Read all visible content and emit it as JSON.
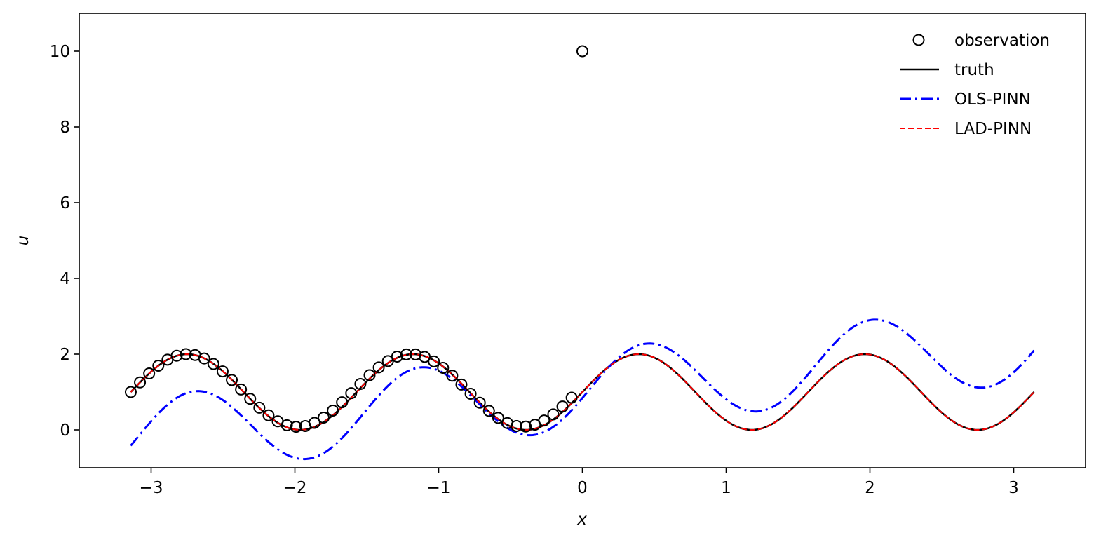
{
  "chart_data": {
    "type": "line",
    "title": "",
    "xlabel": "x",
    "ylabel": "u",
    "xlim": [
      -3.5,
      3.5
    ],
    "ylim": [
      -1.0,
      11.0
    ],
    "xticks": [
      -3,
      -2,
      -1,
      0,
      1,
      2,
      3
    ],
    "xtick_labels": [
      "−3",
      "−2",
      "−1",
      "0",
      "1",
      "2",
      "3"
    ],
    "yticks": [
      0,
      2,
      4,
      6,
      8,
      10
    ],
    "ytick_labels": [
      "0",
      "2",
      "4",
      "6",
      "8",
      "10"
    ],
    "grid": false,
    "legend_position": "top-right",
    "series": [
      {
        "name": "observation",
        "kind": "scatter",
        "color": "#000000",
        "x": [
          -3.1416,
          -3.0777,
          -3.0138,
          -2.9499,
          -2.886,
          -2.8222,
          -2.7583,
          -2.6944,
          -2.6305,
          -2.5666,
          -2.5027,
          -2.4388,
          -2.3749,
          -2.311,
          -2.2471,
          -2.1833,
          -2.1194,
          -2.0555,
          -1.9916,
          -1.9277,
          -1.8638,
          -1.7999,
          -1.736,
          -1.6721,
          -1.6082,
          -1.5444,
          -1.4805,
          -1.4166,
          -1.3527,
          -1.2888,
          -1.2249,
          -1.161,
          -1.0971,
          -1.0332,
          -0.9693,
          -0.9055,
          -0.8416,
          -0.7777,
          -0.7138,
          -0.6499,
          -0.586,
          -0.5221,
          -0.4582,
          -0.3943,
          -0.3304,
          -0.2666,
          -0.2027,
          -0.1388,
          -0.0749,
          0.0
        ],
        "y": [
          1.0,
          1.254,
          1.491,
          1.695,
          1.855,
          1.959,
          2.0,
          1.976,
          1.887,
          1.74,
          1.545,
          1.316,
          1.068,
          0.819,
          0.586,
          0.384,
          0.226,
          0.123,
          0.081,
          0.102,
          0.185,
          0.324,
          0.51,
          0.73,
          0.97,
          1.213,
          1.445,
          1.651,
          1.817,
          1.935,
          1.994,
          1.993,
          1.929,
          1.808,
          1.638,
          1.43,
          1.196,
          0.954,
          0.717,
          0.502,
          0.317,
          0.18,
          0.103,
          0.088,
          0.137,
          0.247,
          0.41,
          0.617,
          0.851,
          10.0
        ]
      },
      {
        "name": "truth",
        "kind": "line",
        "color": "#000000",
        "style": "solid",
        "func": {
          "a": 1.0,
          "b": 1.0,
          "slope": 0.0,
          "k": 4.0,
          "x0": 0.0
        }
      },
      {
        "name": "OLS-PINN",
        "kind": "line",
        "color": "#0000ff",
        "style": "dashdot",
        "func": {
          "a": 1.05,
          "b": 1.05,
          "slope": 0.4,
          "k": 4.0,
          "x0": 0.05
        }
      },
      {
        "name": "LAD-PINN",
        "kind": "line",
        "color": "#ff0000",
        "style": "dashed",
        "func": {
          "a": 1.0,
          "b": 1.0,
          "slope": 0.0,
          "k": 4.0,
          "x0": 0.0
        }
      }
    ],
    "line_x_range": [
      -3.1416,
      3.1416
    ]
  }
}
